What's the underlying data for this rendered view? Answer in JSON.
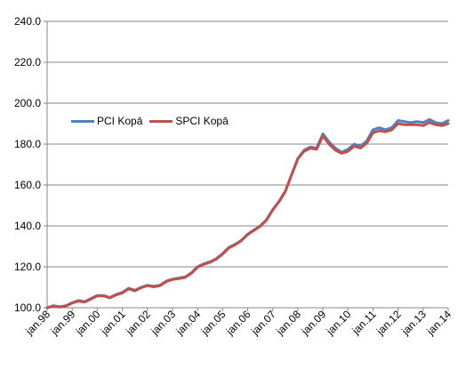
{
  "chart_data": {
    "type": "line",
    "title": "",
    "xlabel": "",
    "ylabel": "",
    "ylim": [
      100,
      240
    ],
    "y_ticks": [
      100,
      120,
      140,
      160,
      180,
      200,
      220,
      240
    ],
    "y_tick_labels": [
      "100.0",
      "120.0",
      "140.0",
      "160.0",
      "180.0",
      "200.0",
      "220.0",
      "240.0"
    ],
    "x_tick_labels": [
      "jan.98",
      "jan.99",
      "jan.00",
      "jan.01",
      "jan.02",
      "jan.03",
      "jan.04",
      "jan.05",
      "jan.06",
      "jan.07",
      "jan.08",
      "jan.09",
      "jan.10",
      "jan.11",
      "jan.12",
      "jan.13",
      "jan.14"
    ],
    "x_range_years": [
      1998,
      2014
    ],
    "grid": "horizontal",
    "legend_position": "left-middle",
    "series": [
      {
        "name": "PCI Kopā",
        "color": "#4F81BD",
        "x": [
          1998.0,
          1998.25,
          1998.5,
          1998.75,
          1999.0,
          1999.25,
          1999.5,
          1999.75,
          2000.0,
          2000.25,
          2000.5,
          2000.75,
          2001.0,
          2001.25,
          2001.5,
          2001.75,
          2002.0,
          2002.25,
          2002.5,
          2002.75,
          2003.0,
          2003.25,
          2003.5,
          2003.75,
          2004.0,
          2004.25,
          2004.5,
          2004.75,
          2005.0,
          2005.25,
          2005.5,
          2005.75,
          2006.0,
          2006.25,
          2006.5,
          2006.75,
          2007.0,
          2007.25,
          2007.5,
          2007.75,
          2008.0,
          2008.25,
          2008.5,
          2008.75,
          2009.0,
          2009.25,
          2009.5,
          2009.75,
          2010.0,
          2010.25,
          2010.5,
          2010.75,
          2011.0,
          2011.25,
          2011.5,
          2011.75,
          2012.0,
          2012.25,
          2012.5,
          2012.75,
          2013.0,
          2013.25,
          2013.5,
          2013.75,
          2014.0
        ],
        "values": [
          100.0,
          101.0,
          100.5,
          101.0,
          102.5,
          103.5,
          103.0,
          104.5,
          106.0,
          106.0,
          105.0,
          106.5,
          107.5,
          109.5,
          108.5,
          110.0,
          111.0,
          110.5,
          111.0,
          113.0,
          114.0,
          114.5,
          115.0,
          117.0,
          120.0,
          121.5,
          122.5,
          124.0,
          126.5,
          129.5,
          131.0,
          133.0,
          136.0,
          138.0,
          140.0,
          143.0,
          148.0,
          152.0,
          157.0,
          165.0,
          173.0,
          177.0,
          178.5,
          178.0,
          185.0,
          181.0,
          178.0,
          176.0,
          177.5,
          180.0,
          179.0,
          181.5,
          187.0,
          188.0,
          187.0,
          188.0,
          191.5,
          191.0,
          190.5,
          191.0,
          190.5,
          192.0,
          190.5,
          190.0,
          191.5
        ]
      },
      {
        "name": "SPCI Kopā",
        "color": "#C0504D",
        "x": [
          1998.0,
          1998.25,
          1998.5,
          1998.75,
          1999.0,
          1999.25,
          1999.5,
          1999.75,
          2000.0,
          2000.25,
          2000.5,
          2000.75,
          2001.0,
          2001.25,
          2001.5,
          2001.75,
          2002.0,
          2002.25,
          2002.5,
          2002.75,
          2003.0,
          2003.25,
          2003.5,
          2003.75,
          2004.0,
          2004.25,
          2004.5,
          2004.75,
          2005.0,
          2005.25,
          2005.5,
          2005.75,
          2006.0,
          2006.25,
          2006.5,
          2006.75,
          2007.0,
          2007.25,
          2007.5,
          2007.75,
          2008.0,
          2008.25,
          2008.5,
          2008.75,
          2009.0,
          2009.25,
          2009.5,
          2009.75,
          2010.0,
          2010.25,
          2010.5,
          2010.75,
          2011.0,
          2011.25,
          2011.5,
          2011.75,
          2012.0,
          2012.25,
          2012.5,
          2012.75,
          2013.0,
          2013.25,
          2013.5,
          2013.75,
          2014.0
        ],
        "values": [
          100.0,
          100.8,
          100.3,
          100.8,
          102.3,
          103.2,
          102.8,
          104.2,
          105.8,
          105.8,
          104.8,
          106.2,
          107.2,
          109.2,
          108.2,
          109.8,
          110.8,
          110.2,
          110.8,
          112.8,
          113.8,
          114.2,
          114.8,
          116.8,
          119.8,
          121.2,
          122.2,
          123.8,
          126.2,
          129.2,
          130.8,
          132.8,
          135.8,
          137.8,
          139.8,
          142.8,
          147.8,
          151.8,
          156.8,
          164.8,
          172.8,
          176.5,
          178.0,
          177.5,
          184.0,
          180.0,
          177.0,
          175.5,
          176.5,
          179.0,
          178.0,
          180.5,
          185.5,
          186.5,
          186.0,
          187.0,
          190.0,
          189.5,
          189.5,
          189.5,
          189.0,
          190.5,
          189.5,
          189.0,
          190.0
        ]
      }
    ]
  }
}
